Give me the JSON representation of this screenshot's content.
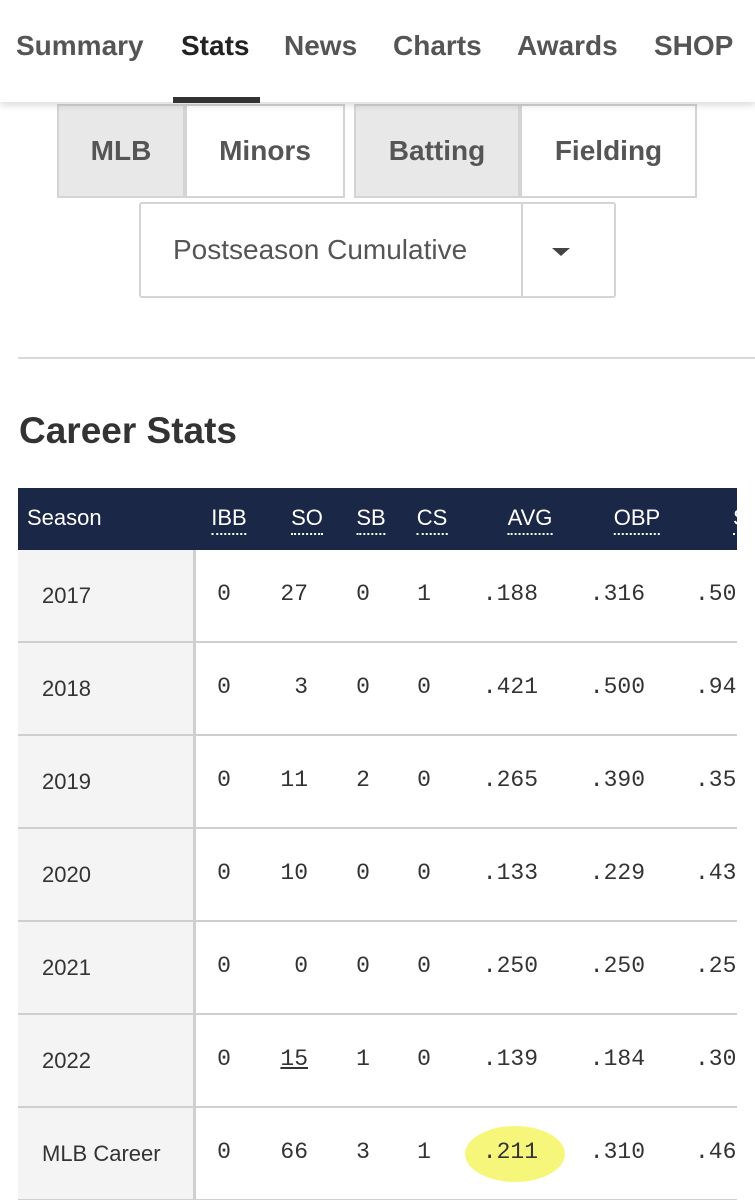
{
  "nav": {
    "tabs": [
      "Summary",
      "Stats",
      "News",
      "Charts",
      "Awards",
      "SHOP"
    ],
    "active": 1
  },
  "toggles": {
    "level": [
      "MLB",
      "Minors"
    ],
    "type": [
      "Batting",
      "Fielding"
    ]
  },
  "dropdown": {
    "selected": "Postseason Cumulative"
  },
  "heading": "Career Stats",
  "table": {
    "headers": [
      "Season",
      "IBB",
      "SO",
      "SB",
      "CS",
      "AVG",
      "OBP",
      "S"
    ],
    "rows": [
      [
        "2017",
        "0",
        "27",
        "0",
        "1",
        ".188",
        ".316",
        ".50"
      ],
      [
        "2018",
        "0",
        "3",
        "0",
        "0",
        ".421",
        ".500",
        ".94"
      ],
      [
        "2019",
        "0",
        "11",
        "2",
        "0",
        ".265",
        ".390",
        ".35"
      ],
      [
        "2020",
        "0",
        "10",
        "0",
        "0",
        ".133",
        ".229",
        ".43"
      ],
      [
        "2021",
        "0",
        "0",
        "0",
        "0",
        ".250",
        ".250",
        ".25"
      ],
      [
        "2022",
        "0",
        "15",
        "1",
        "0",
        ".139",
        ".184",
        ".30"
      ],
      [
        "MLB Career",
        "0",
        "66",
        "3",
        "1",
        ".211",
        ".310",
        ".46"
      ]
    ]
  }
}
